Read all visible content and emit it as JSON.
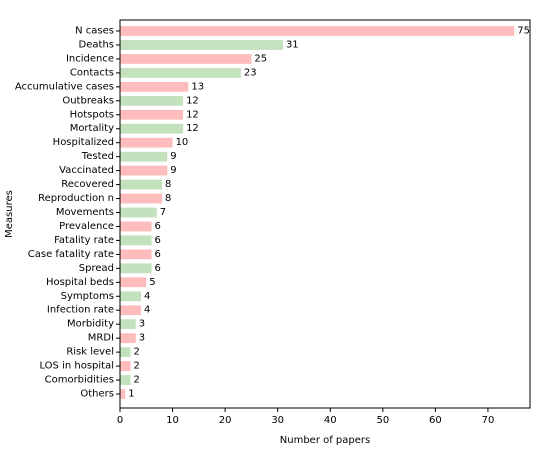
{
  "chart_data": {
    "type": "bar",
    "orientation": "horizontal",
    "xlabel": "Number of papers",
    "ylabel": "Measures",
    "xlim": [
      0,
      78
    ],
    "xticks": [
      0,
      10,
      20,
      30,
      40,
      50,
      60,
      70
    ],
    "grid": false,
    "colors": {
      "pink": "#ffbcbc",
      "green": "#c3e1bd"
    },
    "categories": [
      "N cases",
      "Deaths",
      "Incidence",
      "Contacts",
      "Accumulative cases",
      "Outbreaks",
      "Hotspots",
      "Mortality",
      "Hospitalized",
      "Tested",
      "Vaccinated",
      "Recovered",
      "Reproduction n",
      "Movements",
      "Prevalence",
      "Fatality rate",
      "Case fatality rate",
      "Spread",
      "Hospital beds",
      "Symptoms",
      "Infection rate",
      "Morbidity",
      "MRDI",
      "Risk level",
      "LOS in hospital",
      "Comorbidities",
      "Others"
    ],
    "values": [
      75,
      31,
      25,
      23,
      13,
      12,
      12,
      12,
      10,
      9,
      9,
      8,
      8,
      7,
      6,
      6,
      6,
      6,
      5,
      4,
      4,
      3,
      3,
      2,
      2,
      2,
      1
    ],
    "bar_colors": [
      "pink",
      "green",
      "pink",
      "green",
      "pink",
      "green",
      "pink",
      "green",
      "pink",
      "green",
      "pink",
      "green",
      "pink",
      "green",
      "pink",
      "green",
      "pink",
      "green",
      "pink",
      "green",
      "pink",
      "green",
      "pink",
      "green",
      "pink",
      "green",
      "pink"
    ]
  }
}
